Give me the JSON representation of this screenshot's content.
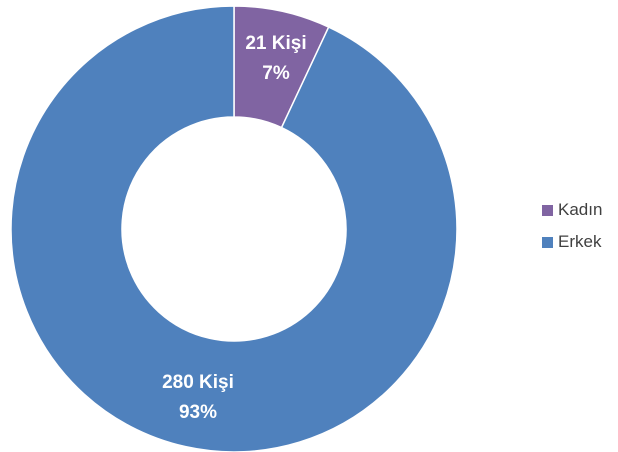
{
  "chart_data": {
    "type": "pie",
    "variant": "donut",
    "title": "",
    "categories": [
      "Kadın",
      "Erkek"
    ],
    "values": [
      21,
      280
    ],
    "percentages": [
      7,
      93
    ],
    "data_labels": [
      {
        "count": "21 Kişi",
        "percent": "7%"
      },
      {
        "count": "280 Kişi",
        "percent": "93%"
      }
    ],
    "colors": [
      "#8064a2",
      "#4f81bd"
    ],
    "legend": {
      "placement": "right",
      "entries": [
        "Kadın",
        "Erkek"
      ]
    }
  }
}
